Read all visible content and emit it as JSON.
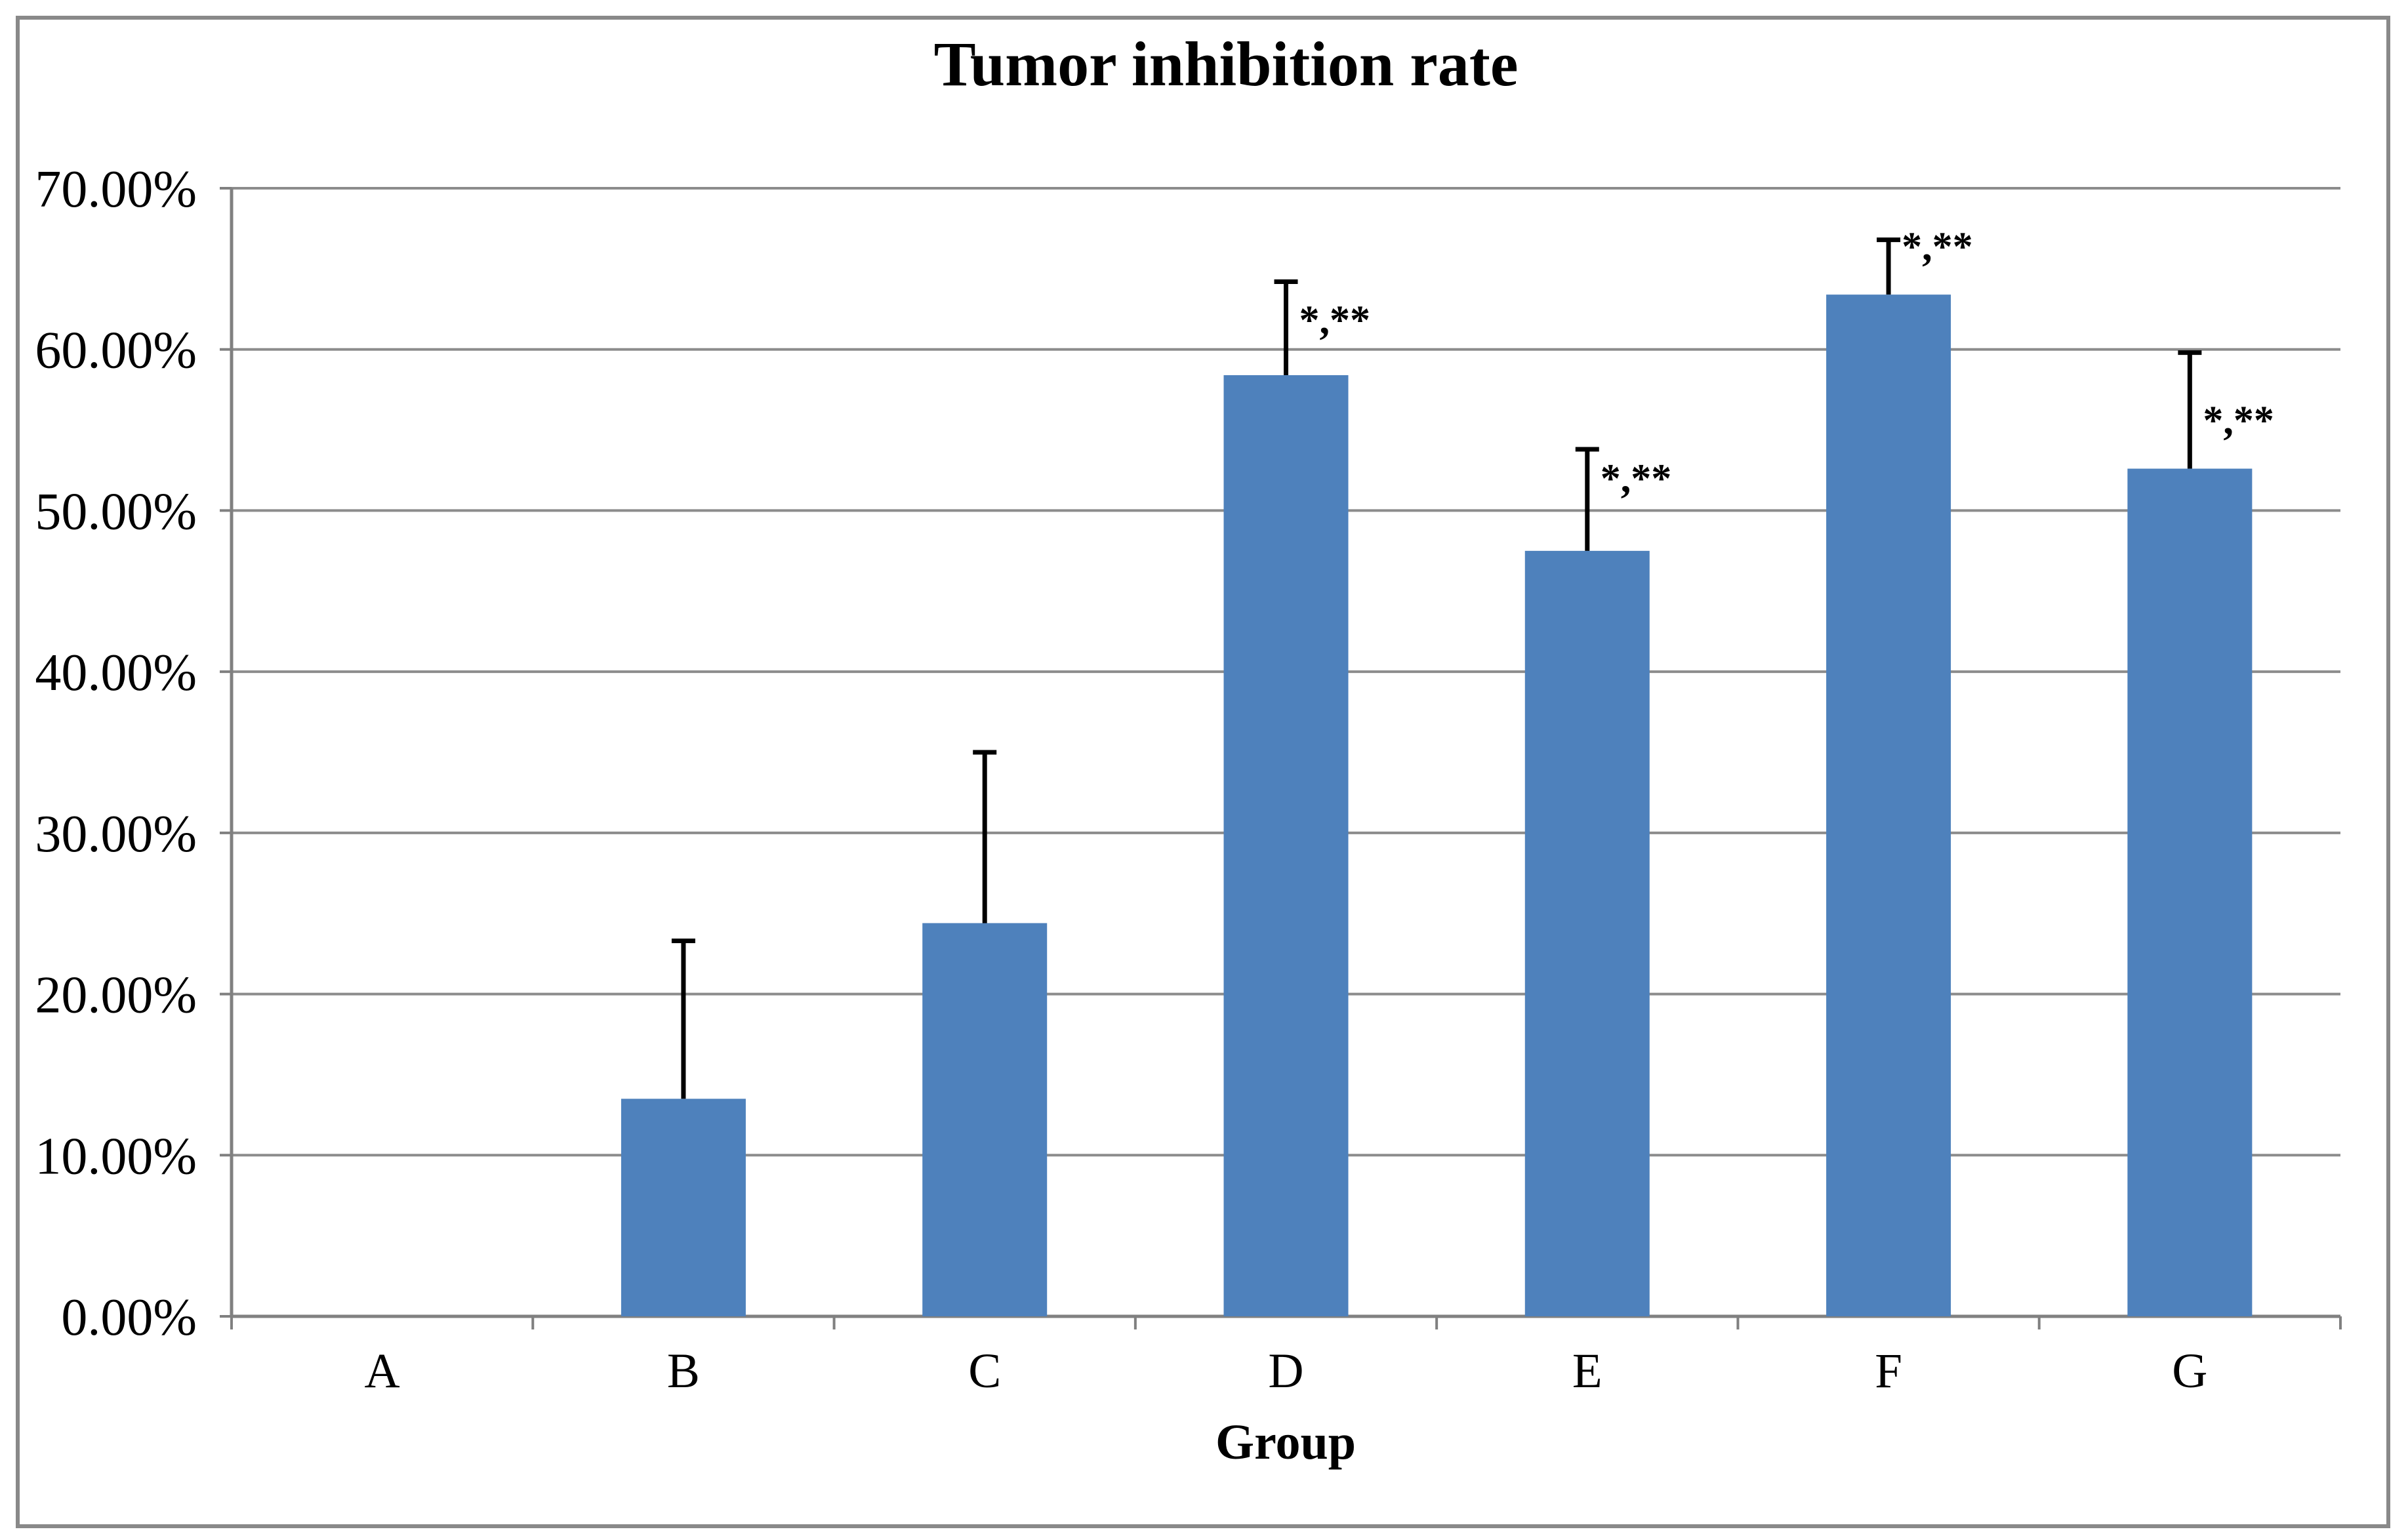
{
  "chart_data": {
    "type": "bar",
    "title": "Tumor inhibition rate",
    "xlabel": "Group",
    "ylabel": "",
    "categories": [
      "A",
      "B",
      "C",
      "D",
      "E",
      "F",
      "G"
    ],
    "values_pct": [
      0,
      13.5,
      24.4,
      58.4,
      47.5,
      63.4,
      52.6
    ],
    "errors_plus_pct": [
      0,
      9.8,
      10.6,
      5.8,
      6.3,
      3.4,
      7.2
    ],
    "annotations": [
      "",
      "",
      "",
      "*,**",
      "*,**",
      "*,**",
      "*,**"
    ],
    "ylim": [
      0,
      70
    ],
    "ytick_step": 10,
    "ytick_labels": [
      "0.00%",
      "10.00%",
      "20.00%",
      "30.00%",
      "40.00%",
      "50.00%",
      "60.00%",
      "70.00%"
    ],
    "grid": true,
    "legend": "none",
    "colors": {
      "bar": "#4E81BC",
      "gridline": "#8C8C8C",
      "axis": "#808080",
      "error_bar": "#000000",
      "text": "#000000",
      "frame_border": "#898989",
      "background": "#FFFFFF"
    }
  }
}
